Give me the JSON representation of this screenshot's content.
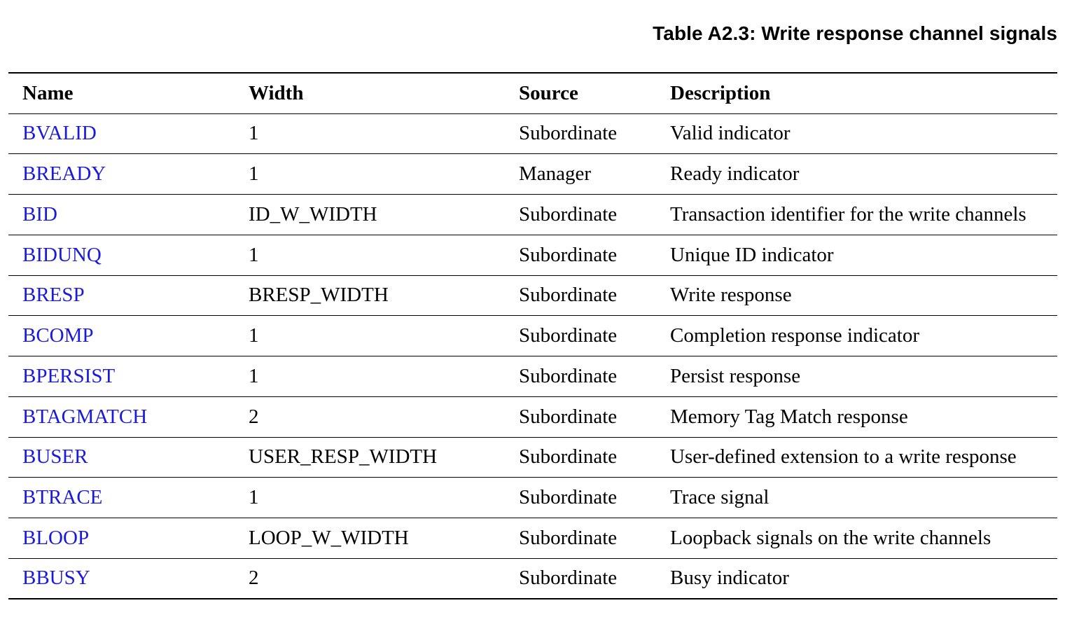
{
  "caption": "Table A2.3: Write response channel signals",
  "table": {
    "headers": {
      "name": "Name",
      "width": "Width",
      "source": "Source",
      "description": "Description"
    },
    "rows": [
      {
        "name": "BVALID",
        "width": "1",
        "source": "Subordinate",
        "description": "Valid indicator"
      },
      {
        "name": "BREADY",
        "width": "1",
        "source": "Manager",
        "description": "Ready indicator"
      },
      {
        "name": "BID",
        "width": "ID_W_WIDTH",
        "source": "Subordinate",
        "description": "Transaction identifier for the write channels"
      },
      {
        "name": "BIDUNQ",
        "width": "1",
        "source": "Subordinate",
        "description": "Unique ID indicator"
      },
      {
        "name": "BRESP",
        "width": "BRESP_WIDTH",
        "source": "Subordinate",
        "description": "Write response"
      },
      {
        "name": "BCOMP",
        "width": "1",
        "source": "Subordinate",
        "description": "Completion response indicator"
      },
      {
        "name": "BPERSIST",
        "width": "1",
        "source": "Subordinate",
        "description": "Persist response"
      },
      {
        "name": "BTAGMATCH",
        "width": "2",
        "source": "Subordinate",
        "description": "Memory Tag Match response"
      },
      {
        "name": "BUSER",
        "width": "USER_RESP_WIDTH",
        "source": "Subordinate",
        "description": "User-defined extension to a write response"
      },
      {
        "name": "BTRACE",
        "width": "1",
        "source": "Subordinate",
        "description": "Trace signal"
      },
      {
        "name": "BLOOP",
        "width": "LOOP_W_WIDTH",
        "source": "Subordinate",
        "description": "Loopback signals on the write channels"
      },
      {
        "name": "BBUSY",
        "width": "2",
        "source": "Subordinate",
        "description": "Busy indicator"
      }
    ]
  },
  "colors": {
    "signal_link": "#1a1adf",
    "text": "#000000",
    "rule": "#000000"
  }
}
